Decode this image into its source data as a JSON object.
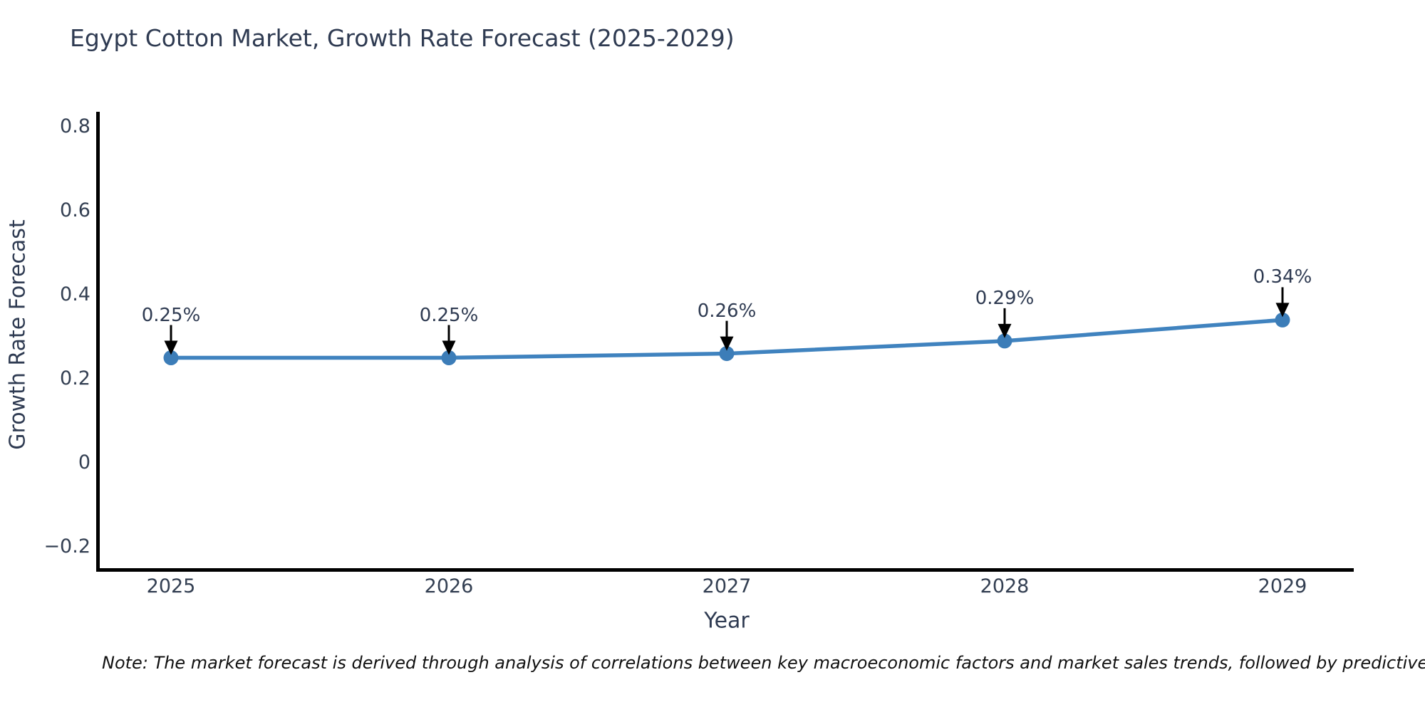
{
  "note": "Note: The market forecast is derived through analysis of correlations between key macroeconomic factors and market sales trends, followed by predictive modeling to project future sa",
  "chart_data": {
    "type": "line",
    "title": "Egypt Cotton Market, Growth Rate Forecast (2025-2029)",
    "xlabel": "Year",
    "ylabel": "Growth Rate Forecast",
    "x": [
      2025,
      2026,
      2027,
      2028,
      2029
    ],
    "series": [
      {
        "name": "Growth Rate Forecast",
        "values": [
          0.25,
          0.25,
          0.26,
          0.29,
          0.34
        ]
      }
    ],
    "point_labels": [
      "0.25%",
      "0.25%",
      "0.26%",
      "0.29%",
      "0.34%"
    ],
    "xtick_labels": [
      "2025",
      "2026",
      "2027",
      "2028",
      "2029"
    ],
    "yticks": [
      0.8,
      0.6,
      0.4,
      0.2,
      0,
      -0.2
    ],
    "ytick_labels": [
      "0.8",
      "0.6",
      "0.4",
      "0.2",
      "0",
      "−0.2"
    ],
    "ylim": [
      -0.25,
      0.84
    ],
    "grid": false,
    "legend": false,
    "colors": {
      "line": "#4083bf",
      "marker": "#3c7db8",
      "arrow": "#000000",
      "axis_spine": "#000000",
      "text": "#2f3b52",
      "note_text": "#111111",
      "background": "#ffffff"
    }
  }
}
